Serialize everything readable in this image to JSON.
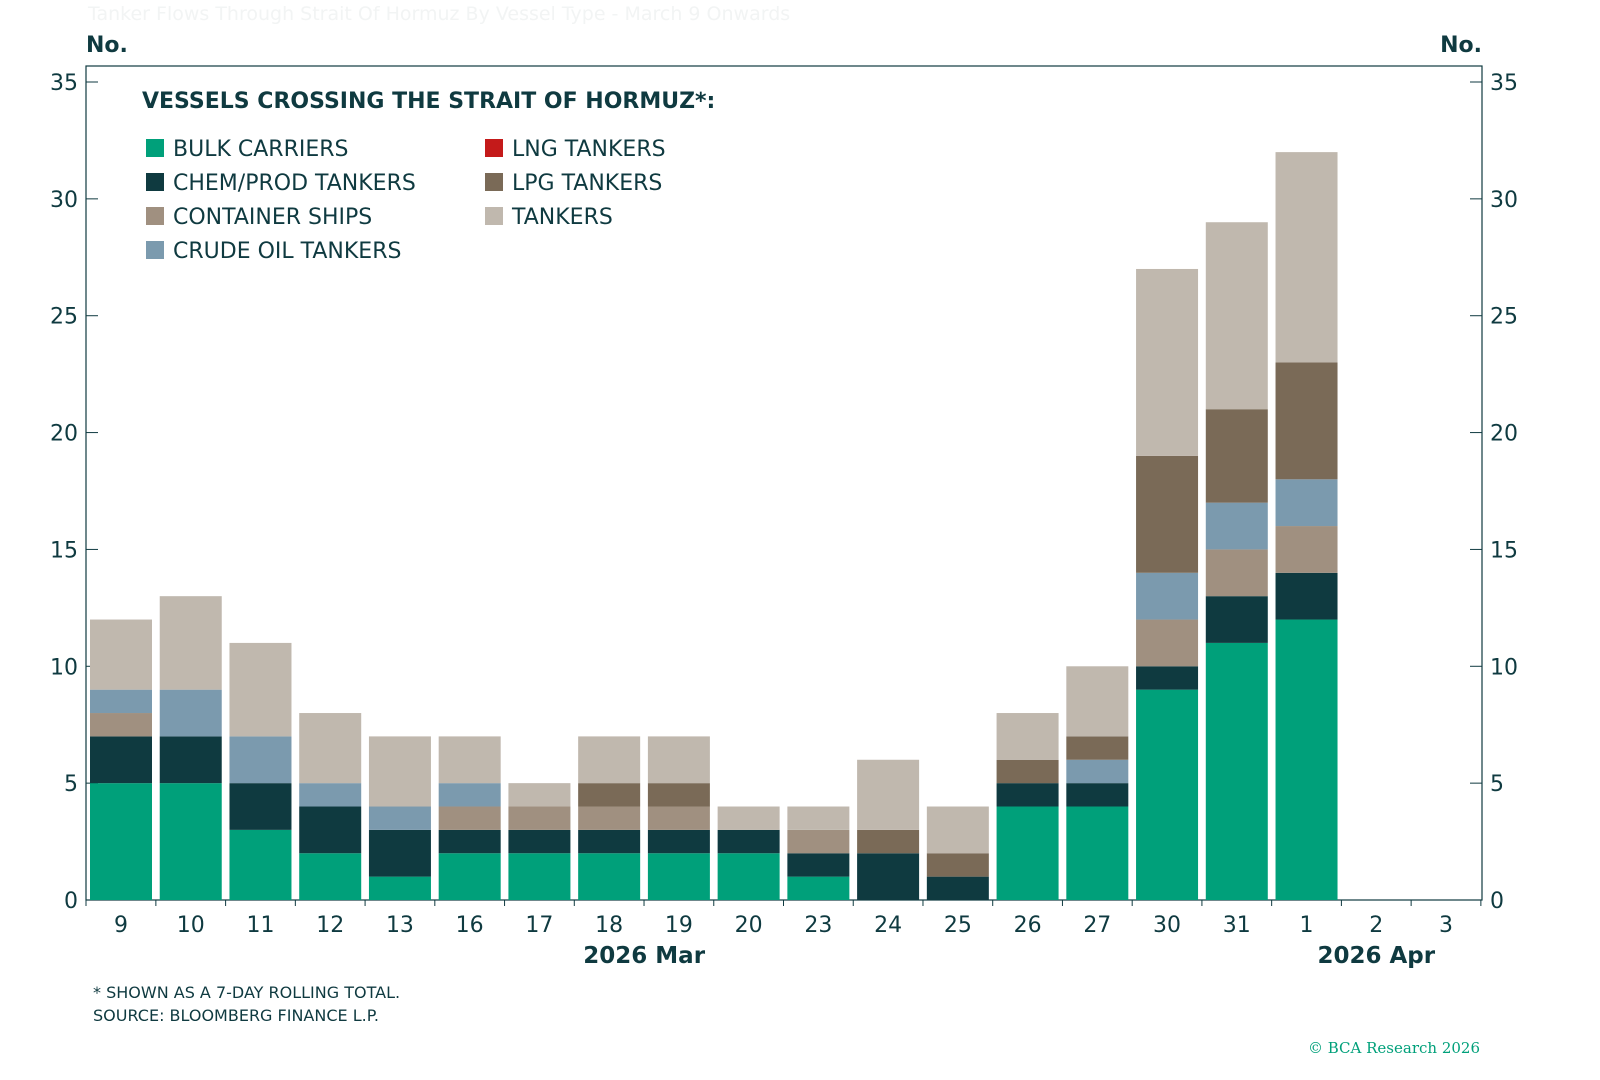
{
  "chart_data": {
    "type": "bar",
    "stacked": true,
    "title": "Tanker Flows Through Strait Of Hormuz By Vessel Type - March 9 Onwards",
    "legend_title": "VESSELS CROSSING THE STRAIT OF HORMUZ*:",
    "legend_placement": "top-left",
    "ylabel_left": "No.",
    "ylabel_right": "No.",
    "ylim": [
      0,
      35
    ],
    "yticks": [
      0,
      5,
      10,
      15,
      20,
      25,
      30,
      35
    ],
    "grid": false,
    "categories": [
      "9",
      "10",
      "11",
      "12",
      "13",
      "16",
      "17",
      "18",
      "19",
      "20",
      "23",
      "24",
      "25",
      "26",
      "27",
      "30",
      "31",
      "1",
      "2",
      "3"
    ],
    "month_labels": [
      {
        "label": "2026 Mar",
        "center_category": "18"
      },
      {
        "label": "2026 Apr",
        "center_category": "2"
      }
    ],
    "series": [
      {
        "name": "BULK CARRIERS",
        "color": "#00a07a",
        "values": [
          5,
          5,
          3,
          2,
          1,
          2,
          2,
          2,
          2,
          2,
          1,
          0,
          0,
          4,
          4,
          9,
          11,
          12,
          0,
          0
        ]
      },
      {
        "name": "CHEM/PROD TANKERS",
        "color": "#0f3a40",
        "values": [
          2,
          2,
          2,
          2,
          2,
          1,
          1,
          1,
          1,
          1,
          1,
          2,
          1,
          1,
          1,
          1,
          2,
          2,
          0,
          0
        ]
      },
      {
        "name": "CONTAINER SHIPS",
        "color": "#a09080",
        "values": [
          1,
          0,
          0,
          0,
          0,
          1,
          1,
          1,
          1,
          0,
          1,
          0,
          0,
          0,
          0,
          2,
          2,
          2,
          0,
          0
        ]
      },
      {
        "name": "CRUDE OIL TANKERS",
        "color": "#7b9aae",
        "values": [
          1,
          2,
          2,
          1,
          1,
          1,
          0,
          0,
          0,
          0,
          0,
          0,
          0,
          0,
          1,
          2,
          2,
          2,
          0,
          0
        ]
      },
      {
        "name": "LNG TANKERS",
        "color": "#c41a1a",
        "values": [
          0,
          0,
          0,
          0,
          0,
          0,
          0,
          0,
          0,
          0,
          0,
          0,
          0,
          0,
          0,
          0,
          0,
          0,
          0,
          0
        ]
      },
      {
        "name": "LPG TANKERS",
        "color": "#7a6a57",
        "values": [
          0,
          0,
          0,
          0,
          0,
          0,
          0,
          1,
          1,
          0,
          0,
          1,
          1,
          1,
          1,
          5,
          4,
          5,
          0,
          0
        ]
      },
      {
        "name": "TANKERS",
        "color": "#c0b8ae",
        "values": [
          3,
          4,
          4,
          3,
          3,
          2,
          1,
          2,
          2,
          1,
          1,
          3,
          2,
          2,
          3,
          8,
          8,
          9,
          0,
          0
        ]
      }
    ]
  },
  "footnotes": [
    "* SHOWN AS A 7-DAY ROLLING TOTAL.",
    "SOURCE: BLOOMBERG FINANCE L.P."
  ],
  "copyright": "© BCA Research 2026"
}
